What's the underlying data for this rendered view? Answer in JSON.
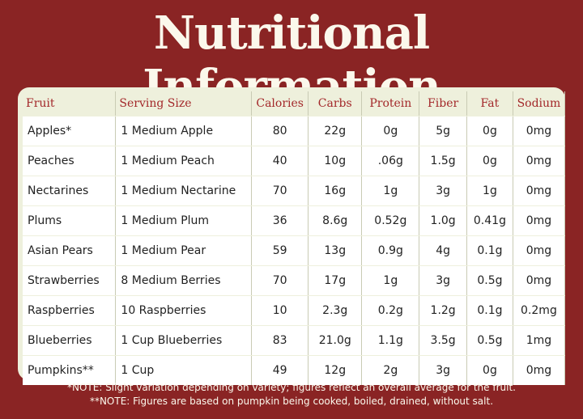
{
  "header": {
    "title": "Nutritional Information"
  },
  "table": {
    "columns": [
      "Fruit",
      "Serving Size",
      "Calories",
      "Carbs",
      "Protein",
      "Fiber",
      "Fat",
      "Sodium"
    ],
    "rows": [
      [
        "Apples*",
        "1 Medium Apple",
        "80",
        "22g",
        "0g",
        "5g",
        "0g",
        "0mg"
      ],
      [
        "Peaches",
        "1 Medium Peach",
        "40",
        "10g",
        ".06g",
        "1.5g",
        "0g",
        "0mg"
      ],
      [
        "Nectarines",
        "1 Medium Nectarine",
        "70",
        "16g",
        "1g",
        "3g",
        "1g",
        "0mg"
      ],
      [
        "Plums",
        "1 Medium Plum",
        "36",
        "8.6g",
        "0.52g",
        "1.0g",
        "0.41g",
        "0mg"
      ],
      [
        "Asian Pears",
        "1 Medium Pear",
        "59",
        "13g",
        "0.9g",
        "4g",
        "0.1g",
        "0mg"
      ],
      [
        "Strawberries",
        "8 Medium Berries",
        "70",
        "17g",
        "1g",
        "3g",
        "0.5g",
        "0mg"
      ],
      [
        "Raspberries",
        "10 Raspberries",
        "10",
        "2.3g",
        "0.2g",
        "1.2g",
        "0.1g",
        "0.2mg"
      ],
      [
        "Blueberries",
        "1 Cup Blueberries",
        "83",
        "21.0g",
        "1.1g",
        "3.5g",
        "0.5g",
        "1mg"
      ],
      [
        "Pumpkins**",
        "1 Cup",
        "49",
        "12g",
        "2g",
        "3g",
        "0g",
        "0mg"
      ]
    ]
  },
  "notes": [
    "*NOTE: Slight variation depending on variety; figures reflect an overall average for the fruit.",
    "**NOTE: Figures are based on pumpkin being cooked, boiled, drained, without salt."
  ]
}
